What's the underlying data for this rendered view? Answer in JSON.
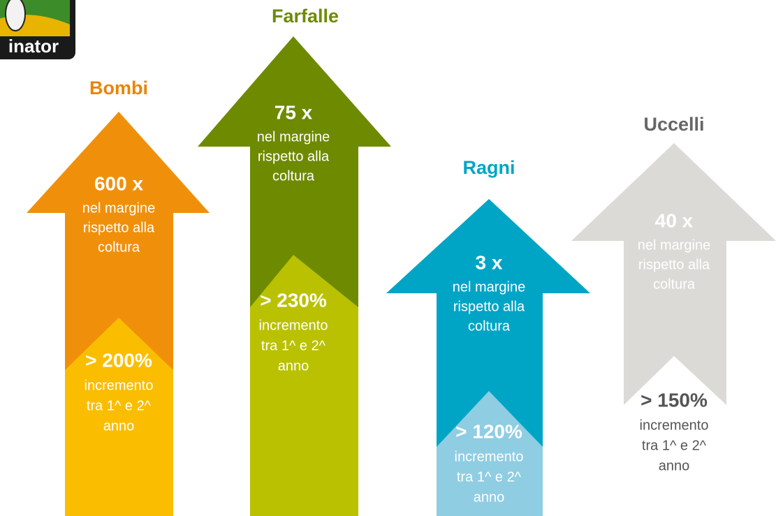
{
  "logo": "inator",
  "panels": [
    {
      "title": "Bombi",
      "margin_value": "600 x",
      "margin_text": [
        "nel margine",
        "rispetto alla",
        "coltura"
      ],
      "increase_value": "> 200%",
      "increase_text": [
        "incremento",
        "tra 1^ e 2^",
        "anno"
      ]
    },
    {
      "title": "Farfalle",
      "margin_value": "75 x",
      "margin_text": [
        "nel margine",
        "rispetto alla",
        "coltura"
      ],
      "increase_value": "> 230%",
      "increase_text": [
        "incremento",
        "tra 1^ e 2^",
        "anno"
      ]
    },
    {
      "title": "Ragni",
      "margin_value": "3 x",
      "margin_text": [
        "nel margine",
        "rispetto alla",
        "coltura"
      ],
      "increase_value": "> 120%",
      "increase_text": [
        "incremento",
        "tra 1^ e 2^",
        "anno"
      ]
    },
    {
      "title": "Uccelli",
      "margin_value": "40 x",
      "margin_text": [
        "nel margine",
        "rispetto alla",
        "coltura"
      ],
      "increase_value": "> 150%",
      "increase_text": [
        "incremento",
        "tra 1^ e 2^",
        "anno"
      ]
    }
  ]
}
